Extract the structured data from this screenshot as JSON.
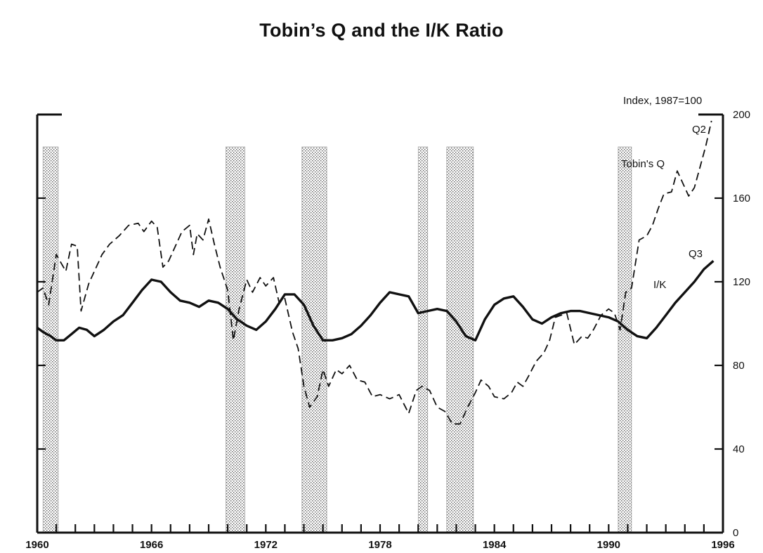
{
  "chart_data": {
    "type": "line",
    "title": "Tobin’s Q and the I/K Ratio",
    "unit_label": "Index, 1987=100",
    "xlim": [
      1960,
      1996
    ],
    "ylim": [
      0,
      200
    ],
    "x_ticks": [
      "1960",
      "1966",
      "1972",
      "1978",
      "1984",
      "1990",
      "1996"
    ],
    "y_ticks": [
      "0",
      "40",
      "80",
      "120",
      "160",
      "200"
    ],
    "y_axis_side": "right",
    "grid": false,
    "recessions": [
      [
        1960.3,
        1961.1
      ],
      [
        1969.9,
        1970.9
      ],
      [
        1973.9,
        1975.2
      ],
      [
        1980.0,
        1980.5
      ],
      [
        1981.5,
        1982.9
      ],
      [
        1990.5,
        1991.2
      ]
    ],
    "annotations": {
      "q2": "Q2",
      "q3": "Q3",
      "tobins_q": "Tobin's Q",
      "ik": "I/K"
    },
    "series": [
      {
        "name": "Tobin's Q",
        "style": "dashed",
        "x": [
          1960.0,
          1960.3,
          1960.6,
          1961.0,
          1961.5,
          1961.8,
          1962.1,
          1962.3,
          1962.7,
          1963.0,
          1963.4,
          1963.8,
          1964.3,
          1964.8,
          1965.3,
          1965.6,
          1966.0,
          1966.3,
          1966.6,
          1966.9,
          1967.3,
          1967.6,
          1968.0,
          1968.2,
          1968.4,
          1968.7,
          1969.0,
          1969.3,
          1969.6,
          1970.0,
          1970.3,
          1970.6,
          1971.0,
          1971.3,
          1971.7,
          1972.0,
          1972.4,
          1972.7,
          1973.0,
          1973.4,
          1973.7,
          1974.0,
          1974.3,
          1974.7,
          1975.0,
          1975.3,
          1975.7,
          1976.0,
          1976.4,
          1976.8,
          1977.2,
          1977.6,
          1978.0,
          1978.5,
          1979.0,
          1979.5,
          1979.9,
          1980.2,
          1980.6,
          1981.0,
          1981.4,
          1981.8,
          1982.2,
          1982.6,
          1983.0,
          1983.3,
          1983.7,
          1984.0,
          1984.5,
          1984.9,
          1985.2,
          1985.5,
          1985.8,
          1986.2,
          1986.6,
          1986.9,
          1987.2,
          1987.5,
          1987.8,
          1988.2,
          1988.6,
          1988.9,
          1989.2,
          1989.6,
          1990.0,
          1990.3,
          1990.6,
          1990.9,
          1991.2,
          1991.6,
          1992.0,
          1992.3,
          1992.6,
          1992.9,
          1993.3,
          1993.6,
          1993.9,
          1994.2,
          1994.5,
          1994.8,
          1995.1,
          1995.4
        ],
        "values": [
          115,
          117,
          109,
          133,
          125,
          138,
          137,
          106,
          119,
          125,
          133,
          138,
          142,
          147,
          148,
          144,
          149,
          146,
          127,
          130,
          138,
          144,
          147,
          133,
          143,
          140,
          150,
          138,
          127,
          116,
          92,
          107,
          121,
          115,
          122,
          118,
          122,
          110,
          112,
          96,
          88,
          70,
          60,
          65,
          78,
          70,
          78,
          76,
          80,
          73,
          72,
          65,
          66,
          64,
          66,
          57,
          68,
          70,
          68,
          60,
          58,
          52,
          52,
          60,
          67,
          73,
          70,
          65,
          64,
          67,
          72,
          70,
          75,
          82,
          86,
          92,
          103,
          104,
          105,
          90,
          94,
          93,
          97,
          104,
          107,
          105,
          97,
          115,
          117,
          140,
          142,
          147,
          155,
          162,
          163,
          173,
          167,
          161,
          165,
          175,
          185,
          197
        ]
      },
      {
        "name": "I/K",
        "style": "solid",
        "x": [
          1960.0,
          1960.3,
          1960.7,
          1961.0,
          1961.4,
          1961.8,
          1962.2,
          1962.6,
          1963.0,
          1963.5,
          1964.0,
          1964.5,
          1965.0,
          1965.5,
          1966.0,
          1966.5,
          1967.0,
          1967.5,
          1968.0,
          1968.5,
          1969.0,
          1969.5,
          1970.0,
          1970.5,
          1971.0,
          1971.5,
          1972.0,
          1972.5,
          1973.0,
          1973.5,
          1974.0,
          1974.5,
          1975.0,
          1975.5,
          1976.0,
          1976.5,
          1977.0,
          1977.5,
          1978.0,
          1978.5,
          1979.0,
          1979.5,
          1980.0,
          1980.5,
          1981.0,
          1981.5,
          1982.0,
          1982.5,
          1983.0,
          1983.5,
          1984.0,
          1984.5,
          1985.0,
          1985.5,
          1986.0,
          1986.5,
          1987.0,
          1987.5,
          1988.0,
          1988.5,
          1989.0,
          1989.5,
          1990.0,
          1990.5,
          1991.0,
          1991.5,
          1992.0,
          1992.5,
          1993.0,
          1993.5,
          1994.0,
          1994.5,
          1995.0,
          1995.5
        ],
        "values": [
          98,
          96,
          94,
          92,
          92,
          95,
          98,
          97,
          94,
          97,
          101,
          104,
          110,
          116,
          121,
          120,
          115,
          111,
          110,
          108,
          111,
          110,
          107,
          102,
          99,
          97,
          101,
          107,
          114,
          114,
          109,
          99,
          92,
          92,
          93,
          95,
          99,
          104,
          110,
          115,
          114,
          113,
          105,
          106,
          107,
          106,
          101,
          94,
          92,
          102,
          109,
          112,
          113,
          108,
          102,
          100,
          103,
          105,
          106,
          106,
          105,
          104,
          103,
          101,
          97,
          94,
          93,
          98,
          104,
          110,
          115,
          120,
          126,
          130
        ]
      }
    ]
  }
}
